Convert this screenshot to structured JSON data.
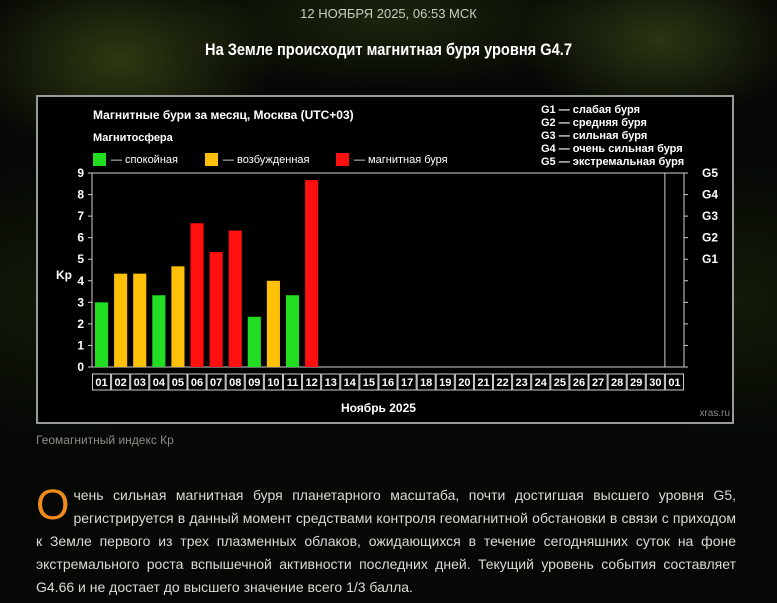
{
  "header": {
    "date": "12 НОЯБРЯ 2025, 06:53 МСК",
    "headline": "На Земле происходит магнитная буря уровня G4.7"
  },
  "chart_data": {
    "type": "bar",
    "title": "Магнитные бури за месяц, Москва (UTC+03)",
    "legend_title": "Магнитосфера",
    "legend": [
      {
        "label": "— спокойная",
        "color": "#22dd22"
      },
      {
        "label": "— возбужденная",
        "color": "#ffc107"
      },
      {
        "label": "— магнитная буря",
        "color": "#ff1010"
      }
    ],
    "storm_levels": [
      {
        "code": "G1",
        "label": "G1 — слабая буря"
      },
      {
        "code": "G2",
        "label": "G2 — средняя буря"
      },
      {
        "code": "G3",
        "label": "G3 — сильная буря"
      },
      {
        "code": "G4",
        "label": "G4 — очень сильная буря"
      },
      {
        "code": "G5",
        "label": "G5 — экстремальная буря"
      }
    ],
    "ylabel": "Kp",
    "xlabel": "Ноябрь 2025",
    "ylim": [
      0,
      9
    ],
    "yticks": [
      0,
      1,
      2,
      3,
      4,
      5,
      6,
      7,
      8,
      9
    ],
    "right_axis": [
      {
        "label": "G1",
        "value": 5
      },
      {
        "label": "G2",
        "value": 6
      },
      {
        "label": "G3",
        "value": 7
      },
      {
        "label": "G4",
        "value": 8
      },
      {
        "label": "G5",
        "value": 9
      }
    ],
    "categories": [
      "01",
      "02",
      "03",
      "04",
      "05",
      "06",
      "07",
      "08",
      "09",
      "10",
      "11",
      "12",
      "13",
      "14",
      "15",
      "16",
      "17",
      "18",
      "19",
      "20",
      "21",
      "22",
      "23",
      "24",
      "25",
      "26",
      "27",
      "28",
      "29",
      "30",
      "01"
    ],
    "values": [
      3.0,
      4.33,
      4.33,
      3.33,
      4.67,
      6.67,
      5.33,
      6.33,
      2.33,
      4.0,
      3.33,
      8.67,
      null,
      null,
      null,
      null,
      null,
      null,
      null,
      null,
      null,
      null,
      null,
      null,
      null,
      null,
      null,
      null,
      null,
      null,
      null
    ],
    "status": [
      "quiet",
      "active",
      "active",
      "quiet",
      "active",
      "storm",
      "storm",
      "storm",
      "quiet",
      "active",
      "quiet",
      "storm",
      null,
      null,
      null,
      null,
      null,
      null,
      null,
      null,
      null,
      null,
      null,
      null,
      null,
      null,
      null,
      null,
      null,
      null,
      null
    ],
    "colors": {
      "quiet": "#22dd22",
      "active": "#ffc107",
      "storm": "#ff1010"
    },
    "watermark": "xras.ru"
  },
  "caption": "Геомагнитный индекс Кр",
  "article": {
    "dropcap": "О",
    "text": "чень сильная магнитная буря планетарного масштаба, почти достигшая высшего уровня G5, регистрируется в данный момент средствами контроля геомагнитной обстановки в связи с приходом к Земле первого из трех плазменных облаков, ожидающихся в течение сегодняшних суток на фоне экстремального роста вспышечной активности последних дней. Текущий уровень события составляет G4.66 и не достает до высшего значение всего 1/3 балла."
  }
}
